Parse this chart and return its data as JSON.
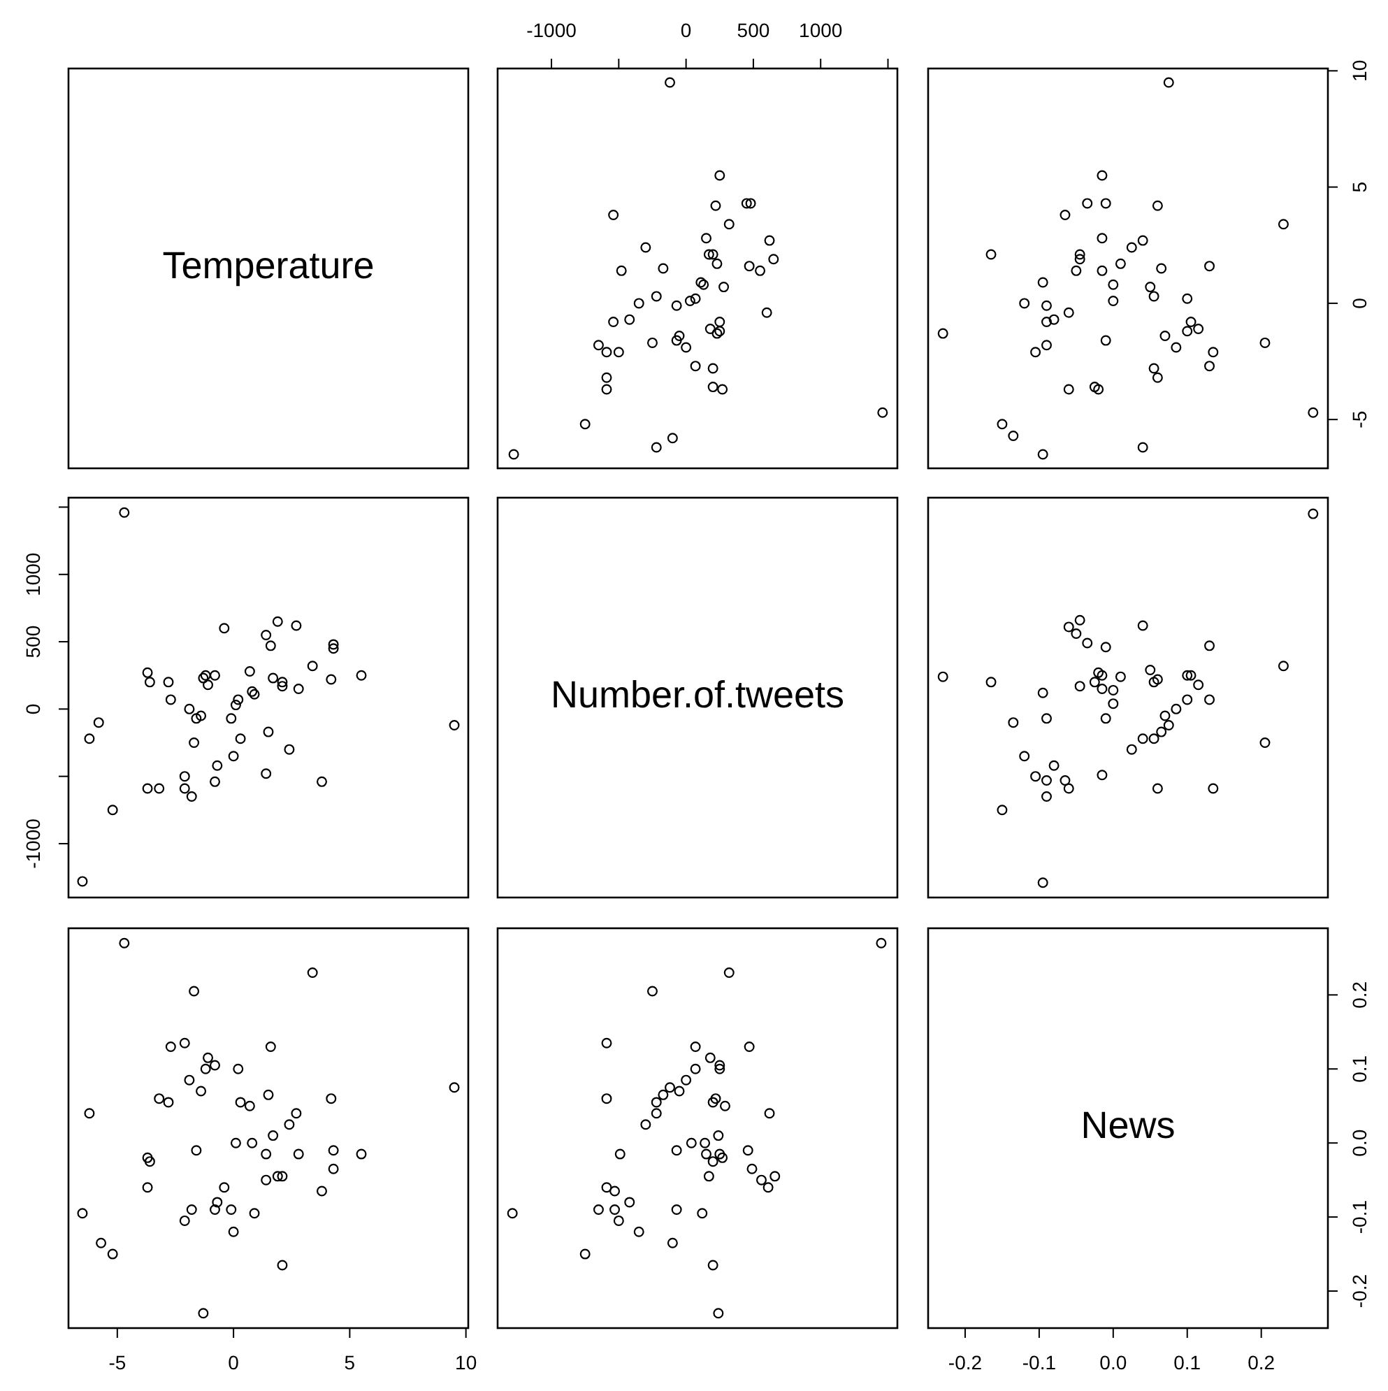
{
  "chart_data": [
    {
      "type": "other",
      "title": "Temperature"
    },
    {
      "type": "scatter",
      "marker": "circle",
      "color": "#000000",
      "tick_labels": "x",
      "xlim": [
        -1400,
        1570
      ],
      "ylim": [
        -7.1,
        10.1
      ],
      "xticks": [
        -1000,
        {
          "value": -500,
          "label": null
        },
        0,
        500,
        1000,
        {
          "value": 1500,
          "label": null
        }
      ],
      "x": [
        1460,
        -1280,
        -220,
        -100,
        -750,
        270,
        200,
        200,
        70,
        -590,
        -590,
        -500,
        -590,
        -650,
        -250,
        0,
        -70,
        -50,
        230,
        250,
        180,
        250,
        600,
        -420,
        -540,
        -70,
        -350,
        30,
        70,
        -220,
        280,
        130,
        110,
        550,
        470,
        650,
        230,
        200,
        170,
        -170,
        -480,
        -300,
        620,
        150,
        320,
        -540,
        220,
        480,
        450,
        250,
        -120
      ],
      "values": [
        -4.7,
        -6.5,
        -6.2,
        -5.8,
        -5.2,
        -3.7,
        -3.6,
        -2.8,
        -2.7,
        -3.7,
        -3.2,
        -2.1,
        -2.1,
        -1.8,
        -1.7,
        -1.9,
        -1.6,
        -1.4,
        -1.3,
        -1.2,
        -1.1,
        -0.8,
        -0.4,
        -0.7,
        -0.8,
        -0.1,
        0,
        0.1,
        0.2,
        0.3,
        0.7,
        0.8,
        0.9,
        1.4,
        1.6,
        1.9,
        1.7,
        2.1,
        2.1,
        1.5,
        1.4,
        2.4,
        2.7,
        2.8,
        3.4,
        3.8,
        4.2,
        4.3,
        4.3,
        5.5,
        9.5
      ]
    },
    {
      "type": "scatter",
      "marker": "circle",
      "color": "#000000",
      "tick_labels": "y",
      "xlim": [
        -0.25,
        0.29
      ],
      "ylim": [
        -7.1,
        10.1
      ],
      "yticks": [
        -5,
        0,
        5,
        10
      ],
      "x": [
        0.27,
        0.23,
        0.205,
        0.13,
        0.135,
        0.13,
        0.115,
        0.105,
        0.1,
        0.1,
        0.085,
        0.07,
        0.075,
        0.06,
        0.055,
        0.055,
        0.05,
        0.065,
        0.06,
        0.04,
        0.025,
        0.04,
        0.01,
        0,
        0,
        -0.01,
        -0.015,
        -0.015,
        -0.01,
        -0.015,
        -0.02,
        -0.025,
        -0.035,
        -0.045,
        -0.045,
        -0.05,
        -0.06,
        -0.06,
        -0.065,
        -0.08,
        -0.09,
        -0.09,
        -0.09,
        -0.095,
        -0.095,
        -0.105,
        -0.12,
        -0.135,
        -0.15,
        -0.165,
        -0.23
      ],
      "values": [
        -4.7,
        3.4,
        -1.7,
        -2.7,
        -2.1,
        1.6,
        -1.1,
        -0.8,
        -1.2,
        0.2,
        -1.9,
        -1.4,
        9.5,
        -3.2,
        -2.8,
        0.3,
        0.7,
        1.5,
        4.2,
        2.7,
        2.4,
        -6.2,
        1.7,
        0.1,
        0.8,
        -1.6,
        1.4,
        2.8,
        4.3,
        5.5,
        -3.7,
        -3.6,
        4.3,
        1.9,
        2.1,
        1.4,
        -3.7,
        -0.4,
        3.8,
        -0.7,
        -0.8,
        -1.8,
        -0.1,
        0.9,
        -6.5,
        -2.1,
        0,
        -5.7,
        -5.2,
        2.1,
        -1.3
      ]
    },
    {
      "type": "scatter",
      "marker": "circle",
      "color": "#000000",
      "tick_labels": "y",
      "xlim": [
        -7.1,
        10.1
      ],
      "ylim": [
        -1400,
        1570
      ],
      "yticks": [
        -1000,
        {
          "value": -500,
          "label": null
        },
        0,
        500,
        1000,
        {
          "value": 1500,
          "label": null
        }
      ],
      "x": [
        -4.7,
        -6.5,
        -6.2,
        -5.8,
        -5.2,
        -3.7,
        -3.6,
        -2.8,
        -2.7,
        -3.7,
        -3.2,
        -2.1,
        -2.1,
        -1.8,
        -1.7,
        -1.9,
        -1.6,
        -1.4,
        -1.3,
        -1.2,
        -1.1,
        -0.8,
        -0.4,
        -0.7,
        -0.8,
        -0.1,
        0,
        0.1,
        0.2,
        0.3,
        0.7,
        0.8,
        0.9,
        1.4,
        1.6,
        1.9,
        1.7,
        2.1,
        2.1,
        1.5,
        1.4,
        2.4,
        2.7,
        2.8,
        3.4,
        3.8,
        4.2,
        4.3,
        4.3,
        5.5,
        9.5
      ],
      "values": [
        1460,
        -1280,
        -220,
        -100,
        -750,
        270,
        200,
        200,
        70,
        -590,
        -590,
        -500,
        -590,
        -650,
        -250,
        0,
        -70,
        -50,
        230,
        250,
        180,
        250,
        600,
        -420,
        -540,
        -70,
        -350,
        30,
        70,
        -220,
        280,
        130,
        110,
        550,
        470,
        650,
        230,
        200,
        170,
        -170,
        -480,
        -300,
        620,
        150,
        320,
        -540,
        220,
        480,
        450,
        250,
        -120
      ]
    },
    {
      "type": "other",
      "title": "Number.of.tweets"
    },
    {
      "type": "scatter",
      "marker": "circle",
      "color": "#000000",
      "xlim": [
        -0.25,
        0.29
      ],
      "ylim": [
        -1400,
        1570
      ],
      "x": [
        0.27,
        0.23,
        0.205,
        0.135,
        0.13,
        0.13,
        0.115,
        0.105,
        0.1,
        0.1,
        0.085,
        0.075,
        0.07,
        0.065,
        0.055,
        0.04,
        0.025,
        0.06,
        0.06,
        0.055,
        0.05,
        0.04,
        0.01,
        -0.015,
        -0.01,
        0,
        0,
        -0.015,
        -0.015,
        -0.02,
        -0.025,
        -0.01,
        -0.035,
        -0.045,
        -0.05,
        -0.045,
        -0.06,
        -0.06,
        -0.065,
        -0.08,
        -0.09,
        -0.09,
        -0.09,
        -0.095,
        -0.095,
        -0.105,
        -0.12,
        -0.135,
        -0.15,
        -0.165,
        -0.23
      ],
      "values": [
        1450,
        320,
        -250,
        -590,
        70,
        470,
        180,
        250,
        250,
        70,
        0,
        -120,
        -50,
        -170,
        -220,
        -220,
        -300,
        -590,
        220,
        200,
        290,
        620,
        240,
        -490,
        -70,
        40,
        140,
        150,
        250,
        270,
        200,
        460,
        490,
        170,
        560,
        660,
        610,
        -590,
        -530,
        -420,
        -650,
        -530,
        -70,
        120,
        -1290,
        -500,
        -350,
        -100,
        -750,
        200,
        240
      ]
    },
    {
      "type": "scatter",
      "marker": "circle",
      "color": "#000000",
      "tick_labels": "x",
      "xlim": [
        -7.1,
        10.1
      ],
      "ylim": [
        -0.25,
        0.29
      ],
      "xticks": [
        -5,
        0,
        5,
        10
      ],
      "x": [
        -4.7,
        3.4,
        -1.7,
        -2.7,
        -2.1,
        1.6,
        -1.1,
        -0.8,
        -1.2,
        0.2,
        -1.9,
        -1.4,
        9.5,
        -3.2,
        -2.8,
        0.3,
        0.7,
        1.5,
        4.2,
        2.7,
        2.4,
        -6.2,
        1.7,
        0.1,
        0.8,
        -1.6,
        1.4,
        2.8,
        4.3,
        5.5,
        -3.7,
        -3.6,
        4.3,
        1.9,
        2.1,
        1.4,
        -3.7,
        -0.4,
        3.8,
        -0.7,
        -0.8,
        -1.8,
        -0.1,
        0.9,
        -6.5,
        -2.1,
        0,
        -5.7,
        -5.2,
        2.1,
        -1.3
      ],
      "values": [
        0.27,
        0.23,
        0.205,
        0.13,
        0.135,
        0.13,
        0.115,
        0.105,
        0.1,
        0.1,
        0.085,
        0.07,
        0.075,
        0.06,
        0.055,
        0.055,
        0.05,
        0.065,
        0.06,
        0.04,
        0.025,
        0.04,
        0.01,
        0,
        0,
        -0.01,
        -0.015,
        -0.015,
        -0.01,
        -0.015,
        -0.02,
        -0.025,
        -0.035,
        -0.045,
        -0.045,
        -0.05,
        -0.06,
        -0.06,
        -0.065,
        -0.08,
        -0.09,
        -0.09,
        -0.09,
        -0.095,
        -0.095,
        -0.105,
        -0.12,
        -0.135,
        -0.15,
        -0.165,
        -0.23
      ]
    },
    {
      "type": "scatter",
      "marker": "circle",
      "color": "#000000",
      "xlim": [
        -1400,
        1570
      ],
      "ylim": [
        -0.25,
        0.29
      ],
      "x": [
        1450,
        320,
        -250,
        -590,
        70,
        470,
        180,
        250,
        250,
        70,
        0,
        -120,
        -50,
        -170,
        -220,
        -220,
        -300,
        -590,
        220,
        200,
        290,
        620,
        240,
        -490,
        -70,
        40,
        140,
        150,
        250,
        270,
        200,
        460,
        490,
        170,
        560,
        660,
        610,
        -590,
        -530,
        -420,
        -650,
        -530,
        -70,
        120,
        -1290,
        -500,
        -350,
        -100,
        -750,
        200,
        240
      ],
      "values": [
        0.27,
        0.23,
        0.205,
        0.135,
        0.13,
        0.13,
        0.115,
        0.105,
        0.1,
        0.1,
        0.085,
        0.075,
        0.07,
        0.065,
        0.055,
        0.04,
        0.025,
        0.06,
        0.06,
        0.055,
        0.05,
        0.04,
        0.01,
        -0.015,
        -0.01,
        0,
        0,
        -0.015,
        -0.015,
        -0.02,
        -0.025,
        -0.01,
        -0.035,
        -0.045,
        -0.05,
        -0.045,
        -0.06,
        -0.06,
        -0.065,
        -0.08,
        -0.09,
        -0.09,
        -0.09,
        -0.095,
        -0.095,
        -0.105,
        -0.12,
        -0.135,
        -0.15,
        -0.165,
        -0.23
      ]
    },
    {
      "type": "scatter",
      "title": "News",
      "xlim": [
        -0.25,
        0.29
      ],
      "ylim": [
        -0.25,
        0.29
      ],
      "xticks": [
        -0.2,
        -0.1,
        {
          "value": 0,
          "label": "0.0"
        },
        0.1,
        0.2
      ],
      "yticks": [
        -0.2,
        -0.1,
        {
          "value": 0,
          "label": "0.0"
        },
        0.1,
        0.2
      ]
    }
  ]
}
